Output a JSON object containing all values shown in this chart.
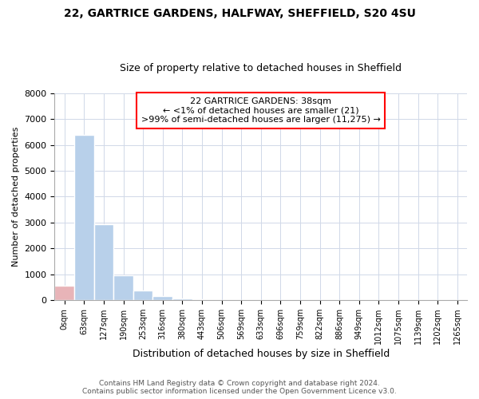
{
  "title1": "22, GARTRICE GARDENS, HALFWAY, SHEFFIELD, S20 4SU",
  "title2": "Size of property relative to detached houses in Sheffield",
  "xlabel": "Distribution of detached houses by size in Sheffield",
  "ylabel": "Number of detached properties",
  "annotation_title": "22 GARTRICE GARDENS: 38sqm",
  "annotation_line2": "← <1% of detached houses are smaller (21)",
  "annotation_line3": ">99% of semi-detached houses are larger (11,275) →",
  "footer1": "Contains HM Land Registry data © Crown copyright and database right 2024.",
  "footer2": "Contains public sector information licensed under the Open Government Licence v3.0.",
  "categories": [
    "0sqm",
    "63sqm",
    "127sqm",
    "190sqm",
    "253sqm",
    "316sqm",
    "380sqm",
    "443sqm",
    "506sqm",
    "569sqm",
    "633sqm",
    "696sqm",
    "759sqm",
    "822sqm",
    "886sqm",
    "949sqm",
    "1012sqm",
    "1075sqm",
    "1139sqm",
    "1202sqm",
    "1265sqm"
  ],
  "values": [
    550,
    6400,
    2940,
    960,
    390,
    160,
    80,
    50,
    5,
    5,
    5,
    5,
    5,
    5,
    5,
    5,
    5,
    5,
    5,
    5,
    5
  ],
  "bar_color": "#b8d0ea",
  "highlight_bar_color": "#e8b4b8",
  "highlight_bar_index": 0,
  "ylim": [
    0,
    8000
  ],
  "yticks": [
    0,
    1000,
    2000,
    3000,
    4000,
    5000,
    6000,
    7000,
    8000
  ],
  "bg_color": "#ffffff",
  "grid_color": "#d0d8e8",
  "title1_fontsize": 10,
  "title2_fontsize": 9
}
